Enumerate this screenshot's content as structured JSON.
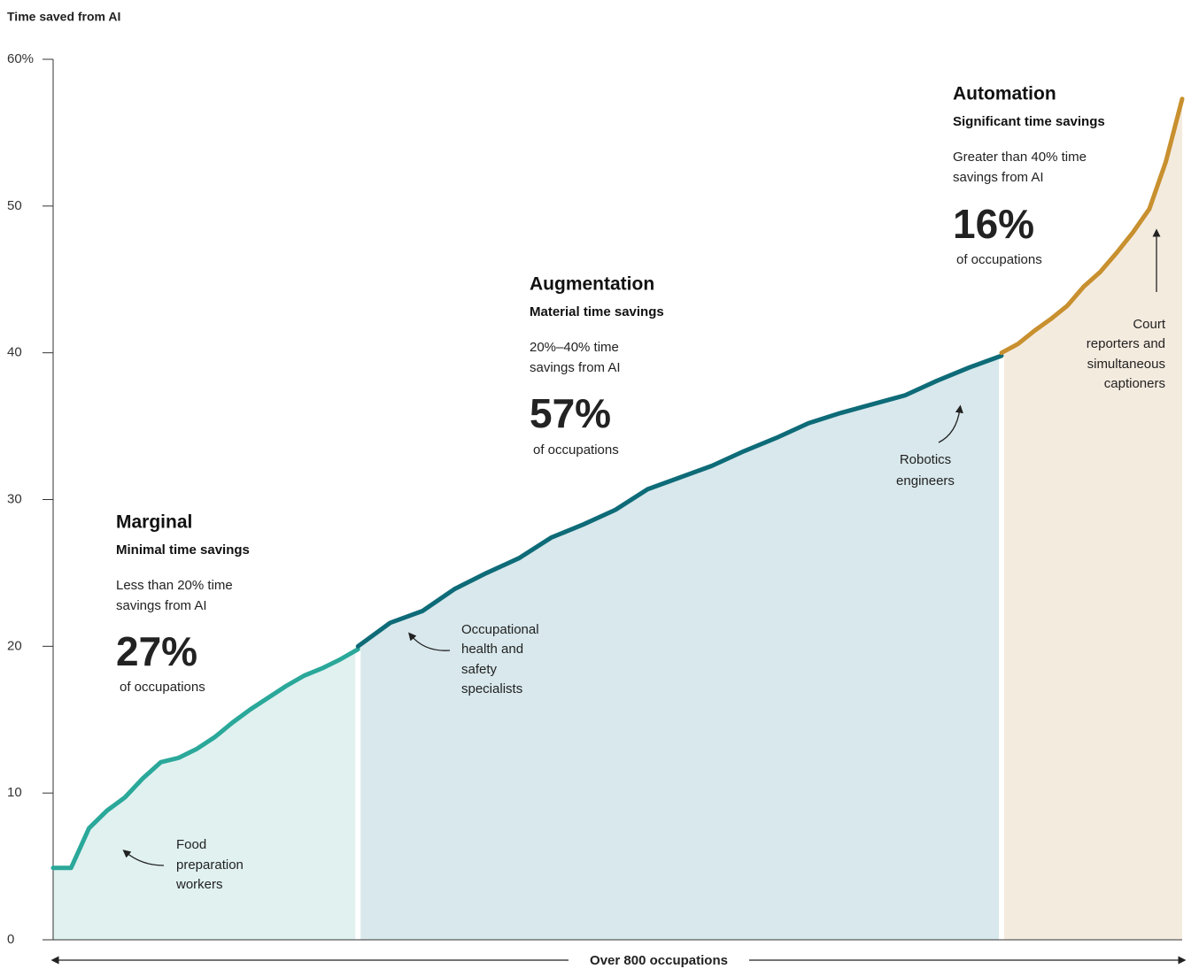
{
  "chart_data": {
    "type": "line",
    "y_axis_title": "Time saved from AI",
    "x_axis_label": "Over 800 occupations",
    "ylim": [
      0,
      60
    ],
    "yticks": [
      0,
      10,
      20,
      30,
      40,
      50,
      {
        "value": 60,
        "label": "60%"
      }
    ],
    "series": [
      {
        "name": "Marginal",
        "subtitle": "Minimal time savings",
        "description": [
          "Less than 20% time",
          "savings from AI"
        ],
        "share": 27,
        "share_label": "27%",
        "share_caption": "of occupations",
        "color": "#2aa89a",
        "area_color": "#e0f1f0",
        "values": [
          4.9,
          4.9,
          7.6,
          8.8,
          9.7,
          11.0,
          12.1,
          12.4,
          13.0,
          13.8,
          14.8,
          15.7,
          16.5,
          17.3,
          18.0,
          18.5,
          19.1,
          19.8
        ]
      },
      {
        "name": "Augmentation",
        "subtitle": "Material time savings",
        "description": [
          "20%–40% time",
          "savings from AI"
        ],
        "share": 57,
        "share_label": "57%",
        "share_caption": "of occupations",
        "color": "#0e6b78",
        "area_color": "#d8e8ec",
        "values": [
          20.0,
          21.6,
          22.4,
          23.9,
          25.0,
          26.0,
          27.4,
          28.3,
          29.3,
          30.7,
          31.5,
          32.3,
          33.3,
          34.2,
          35.2,
          35.9,
          36.5,
          37.1,
          38.1,
          39.0,
          39.8
        ]
      },
      {
        "name": "Automation",
        "subtitle": "Significant time savings",
        "description": [
          "Greater than 40% time",
          "savings from AI"
        ],
        "share": 16,
        "share_label": "16%",
        "share_caption": "of occupations",
        "color": "#c8902f",
        "area_color": "#f4ebdf",
        "values": [
          40.0,
          40.6,
          41.5,
          42.3,
          43.2,
          44.5,
          45.5,
          46.8,
          48.2,
          49.8,
          53.0,
          57.3
        ]
      }
    ],
    "callouts": [
      {
        "lines": [
          "Food",
          "preparation",
          "workers"
        ]
      },
      {
        "lines": [
          "Occupational",
          "health and",
          "safety",
          "specialists"
        ]
      },
      {
        "lines": [
          "Robotics",
          "engineers"
        ]
      },
      {
        "lines": [
          "Court",
          "reporters and",
          "simultaneous",
          "captioners"
        ]
      }
    ]
  }
}
